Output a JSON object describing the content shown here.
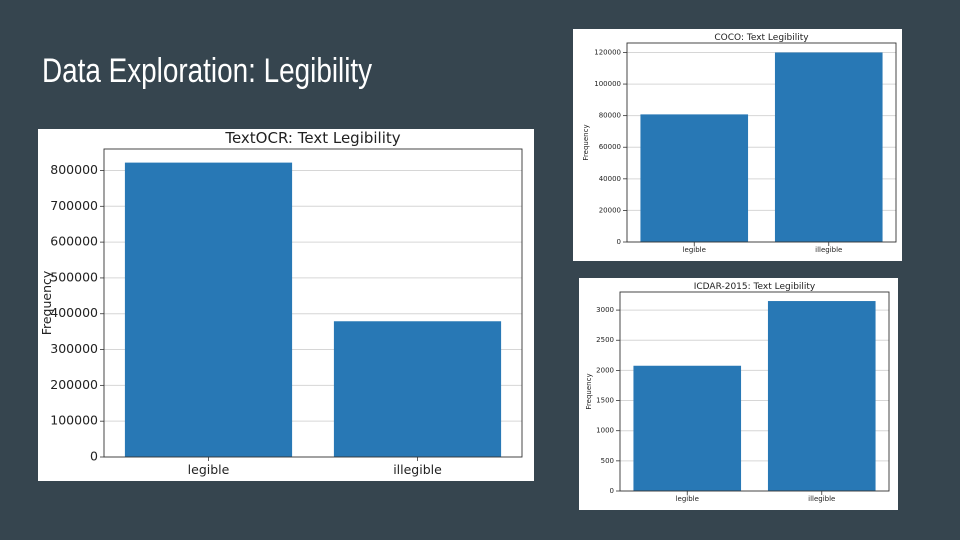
{
  "slide": {
    "title": "Data Exploration: Legibility"
  },
  "chart_data": [
    {
      "id": "textocr",
      "type": "bar",
      "title": "TextOCR: Text Legibility",
      "xlabel": "",
      "ylabel": "Frequency",
      "categories": [
        "legible",
        "illegible"
      ],
      "values": [
        822000,
        379000
      ],
      "ylim": [
        0,
        860000
      ],
      "yticks": [
        0,
        100000,
        200000,
        300000,
        400000,
        500000,
        600000,
        700000,
        800000
      ],
      "grid": "y",
      "bar_color": "#2878b5"
    },
    {
      "id": "coco",
      "type": "bar",
      "title": "COCO: Text Legibility",
      "xlabel": "",
      "ylabel": "Frequency",
      "categories": [
        "legible",
        "illegible"
      ],
      "values": [
        80800,
        120000
      ],
      "ylim": [
        0,
        126000
      ],
      "yticks": [
        0,
        20000,
        40000,
        60000,
        80000,
        100000,
        120000
      ],
      "grid": "y",
      "bar_color": "#2878b5"
    },
    {
      "id": "icdar",
      "type": "bar",
      "title": "ICDAR-2015: Text Legibility",
      "xlabel": "",
      "ylabel": "Frequency",
      "categories": [
        "legible",
        "illegible"
      ],
      "values": [
        2077,
        3150
      ],
      "ylim": [
        0,
        3300
      ],
      "yticks": [
        0,
        500,
        1000,
        1500,
        2000,
        2500,
        3000
      ],
      "grid": "y",
      "bar_color": "#2878b5"
    }
  ]
}
